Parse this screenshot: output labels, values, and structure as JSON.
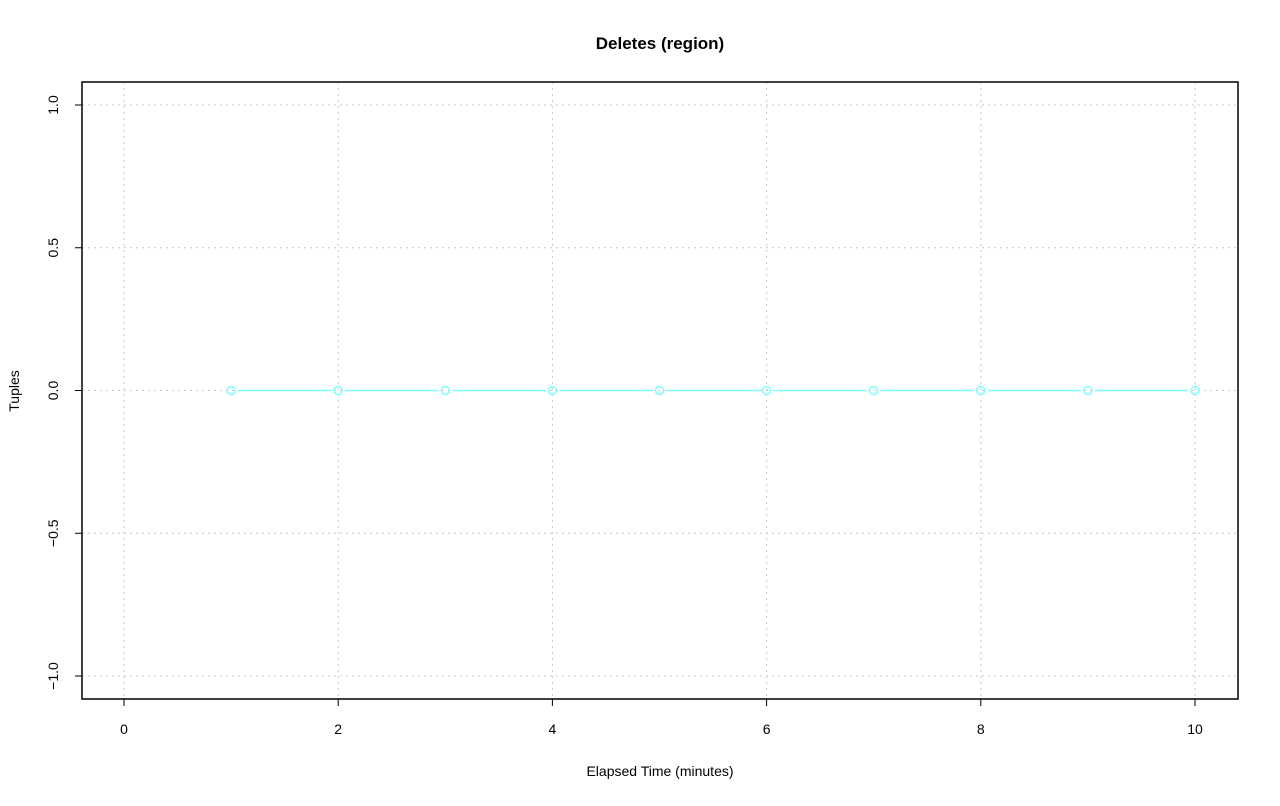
{
  "chart_data": {
    "type": "line",
    "title": "Deletes (region)",
    "xlabel": "Elapsed Time (minutes)",
    "ylabel": "Tuples",
    "xlim": [
      0,
      10
    ],
    "ylim": [
      -1,
      1
    ],
    "x_ticks": [
      0,
      2,
      4,
      6,
      8,
      10
    ],
    "y_ticks": [
      "-1.0",
      "-0.5",
      "0.0",
      "0.5",
      "1.0"
    ],
    "grid": true,
    "series": [
      {
        "color": "#7fffff",
        "marker": "open-circle",
        "x": [
          1,
          2,
          3,
          4,
          5,
          6,
          7,
          8,
          9,
          10
        ],
        "y": [
          0,
          0,
          0,
          0,
          0,
          0,
          0,
          0,
          0,
          0
        ]
      }
    ]
  }
}
